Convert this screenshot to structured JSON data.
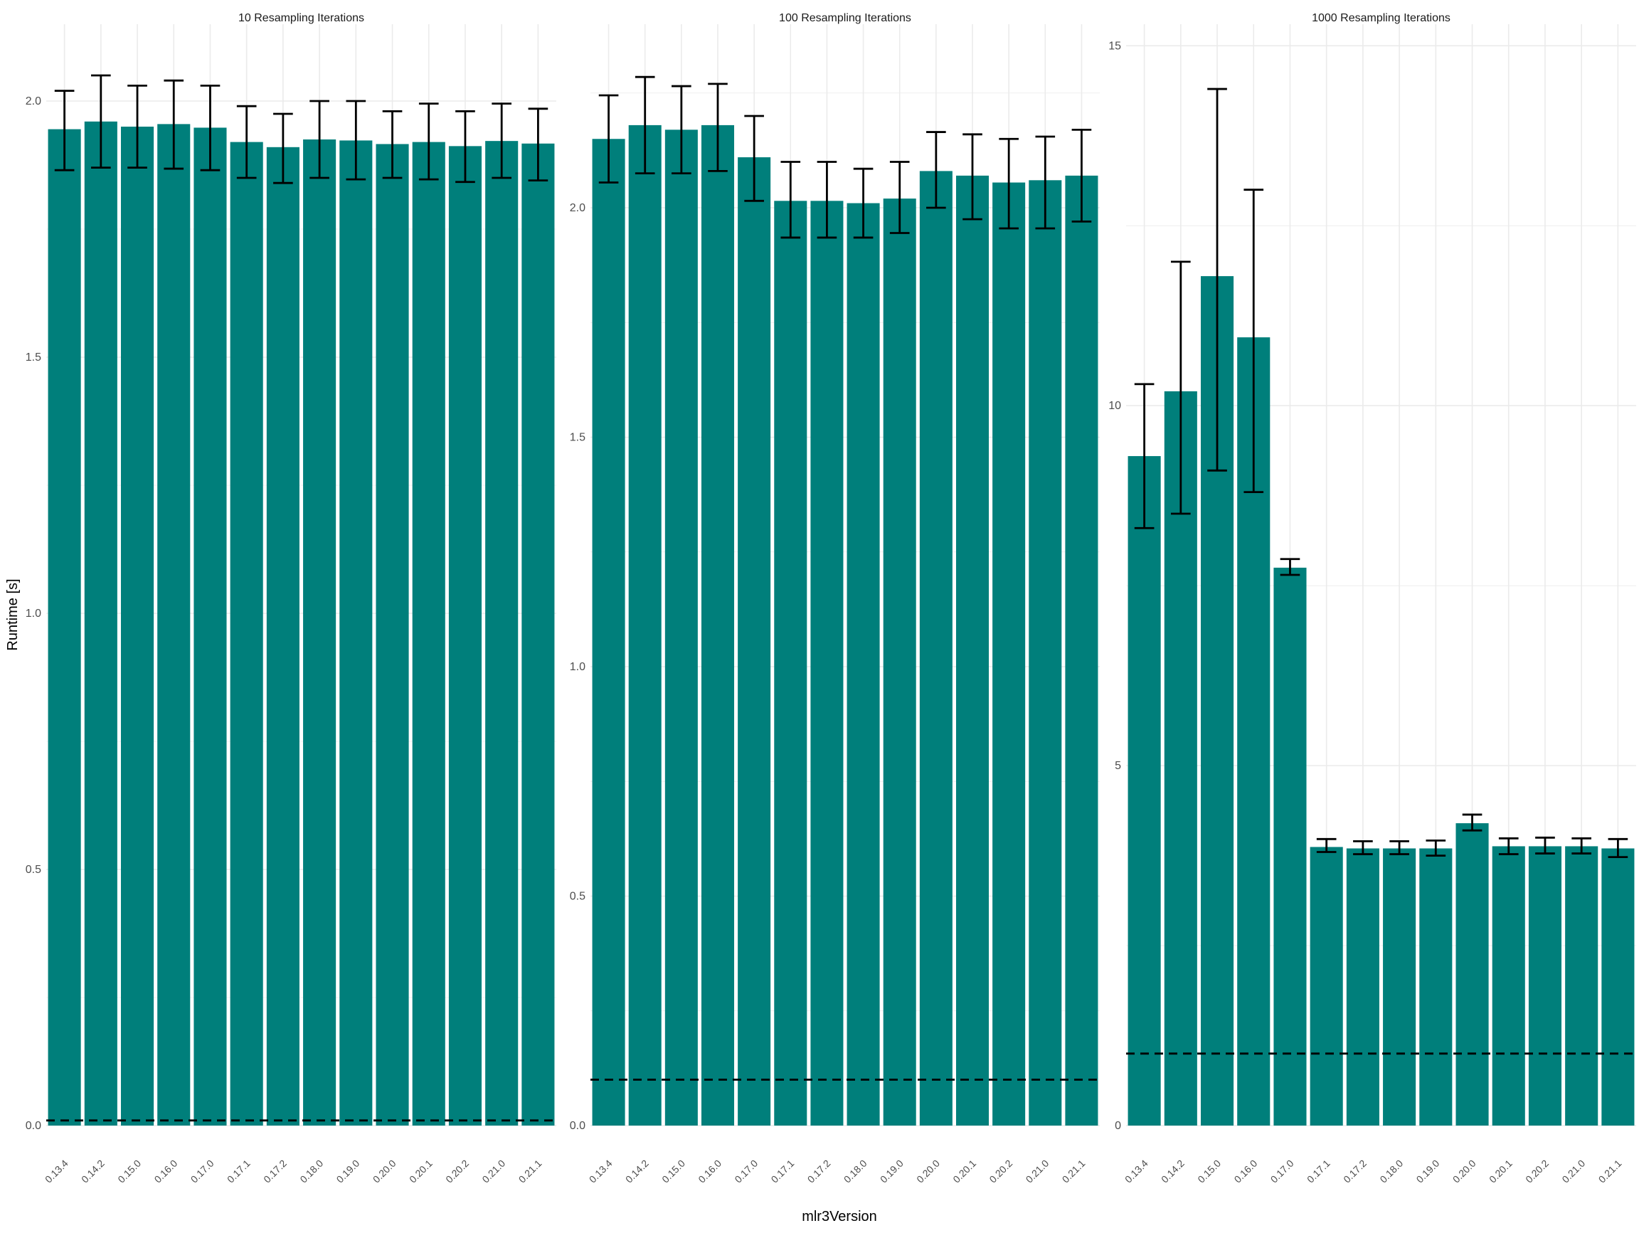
{
  "colors": {
    "bar": "#007f7b",
    "grid": "#ebebeb",
    "errorbar": "#000000",
    "refline": "#000000",
    "background": "#ffffff"
  },
  "chart_data": {
    "type": "bar",
    "title": "",
    "xlabel": "mlr3Version",
    "ylabel": "Runtime [s]",
    "grid": true,
    "legend": "none",
    "errorbars": true,
    "categories": [
      "0.13.4",
      "0.14.2",
      "0.15.0",
      "0.16.0",
      "0.17.0",
      "0.17.1",
      "0.17.2",
      "0.18.0",
      "0.19.0",
      "0.20.0",
      "0.20.1",
      "0.20.2",
      "0.21.0",
      "0.21.1"
    ],
    "panels": [
      {
        "title": "10 Resampling Iterations",
        "ylim": [
          0,
          2.15
        ],
        "yticks": [
          0.0,
          0.5,
          1.0,
          1.5,
          2.0
        ],
        "ytick_labels": [
          "0.0",
          "0.5",
          "1.0",
          "1.5",
          "2.0"
        ],
        "reference_line": 0.01,
        "values": [
          1.945,
          1.96,
          1.95,
          1.955,
          1.948,
          1.92,
          1.91,
          1.925,
          1.923,
          1.916,
          1.92,
          1.912,
          1.922,
          1.917
        ],
        "err_low": [
          1.865,
          1.87,
          1.87,
          1.868,
          1.865,
          1.85,
          1.84,
          1.85,
          1.847,
          1.85,
          1.847,
          1.842,
          1.85,
          1.845
        ],
        "err_high": [
          2.02,
          2.05,
          2.03,
          2.04,
          2.03,
          1.99,
          1.975,
          2.0,
          2.0,
          1.98,
          1.995,
          1.98,
          1.995,
          1.985
        ]
      },
      {
        "title": "100 Resampling Iterations",
        "ylim": [
          0,
          2.4
        ],
        "yticks": [
          0.0,
          0.5,
          1.0,
          1.5,
          2.0
        ],
        "ytick_labels": [
          "0.0",
          "0.5",
          "1.0",
          "1.5",
          "2.0"
        ],
        "reference_line": 0.1,
        "values": [
          2.15,
          2.18,
          2.17,
          2.18,
          2.11,
          2.015,
          2.015,
          2.01,
          2.02,
          2.08,
          2.07,
          2.055,
          2.06,
          2.07
        ],
        "err_low": [
          2.055,
          2.075,
          2.075,
          2.08,
          2.015,
          1.935,
          1.935,
          1.935,
          1.945,
          2.0,
          1.975,
          1.955,
          1.955,
          1.97
        ],
        "err_high": [
          2.245,
          2.285,
          2.265,
          2.27,
          2.2,
          2.1,
          2.1,
          2.085,
          2.1,
          2.165,
          2.16,
          2.15,
          2.155,
          2.17
        ]
      },
      {
        "title": "1000 Resampling Iterations",
        "ylim": [
          0,
          15.3
        ],
        "yticks": [
          0,
          5,
          10,
          15
        ],
        "ytick_labels": [
          "0",
          "5",
          "10",
          "15"
        ],
        "reference_line": 1.0,
        "values": [
          9.3,
          10.2,
          11.8,
          10.95,
          7.75,
          3.87,
          3.85,
          3.85,
          3.85,
          4.2,
          3.88,
          3.88,
          3.88,
          3.85
        ],
        "err_low": [
          8.3,
          8.5,
          9.1,
          8.8,
          7.65,
          3.8,
          3.77,
          3.77,
          3.75,
          4.1,
          3.77,
          3.78,
          3.78,
          3.73
        ],
        "err_high": [
          10.3,
          12.0,
          14.4,
          13.0,
          7.87,
          3.98,
          3.95,
          3.95,
          3.96,
          4.32,
          3.99,
          4.0,
          3.99,
          3.98
        ]
      }
    ]
  }
}
